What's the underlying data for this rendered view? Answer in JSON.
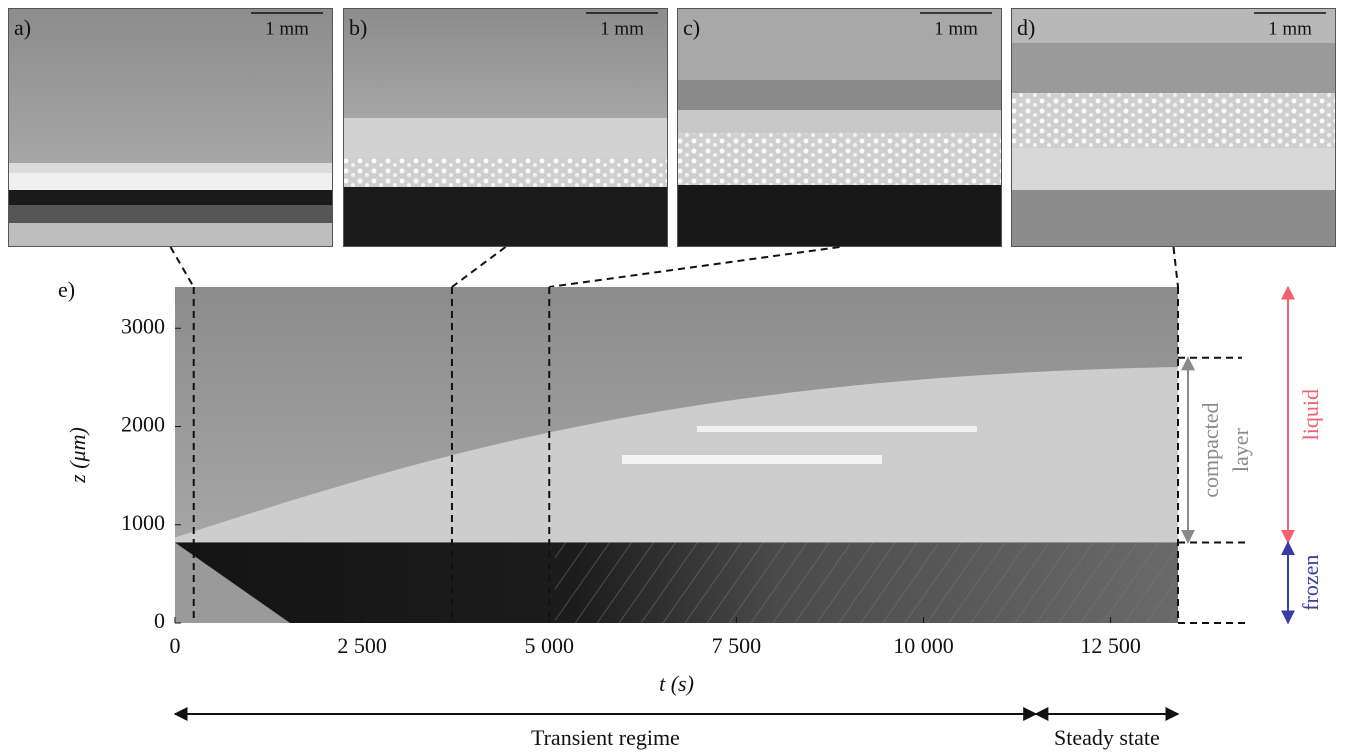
{
  "chart_data": {
    "type": "image",
    "panel_label": "e)",
    "xlabel": "t (s)",
    "ylabel": "z (μm)",
    "xlim": [
      0,
      13400
    ],
    "ylim": [
      0,
      3420
    ],
    "xticks": [
      0,
      {
        "value": 2500,
        "label": "2 500"
      },
      {
        "value": 5000,
        "label": "5 000"
      },
      {
        "value": 7500,
        "label": "7 500"
      },
      {
        "value": 10000,
        "label": "10 000"
      },
      {
        "value": 12500,
        "label": "12 500"
      }
    ],
    "yticks": [
      0,
      1000,
      2000,
      3000
    ],
    "vlines": [
      250,
      3700,
      5000,
      13400
    ],
    "hlines": [
      2700,
      820,
      0
    ],
    "insets": [
      {
        "label": "a)",
        "scale_bar": "1 mm"
      },
      {
        "label": "b)",
        "scale_bar": "1 mm"
      },
      {
        "label": "c)",
        "scale_bar": "1 mm"
      },
      {
        "label": "d)",
        "scale_bar": "1 mm"
      }
    ],
    "annotations": {
      "compacted": [
        "compacted",
        "layer"
      ],
      "liquid": "liquid",
      "frozen": "frozen",
      "liquid_color": "#f26072",
      "frozen_color": "#3b3ba6",
      "compacted_color": "#8a8a8a"
    },
    "regimes": [
      {
        "label": "Transient regime",
        "range": [
          0,
          11500
        ]
      },
      {
        "label": "Steady state",
        "range": [
          11500,
          13400
        ]
      }
    ]
  }
}
